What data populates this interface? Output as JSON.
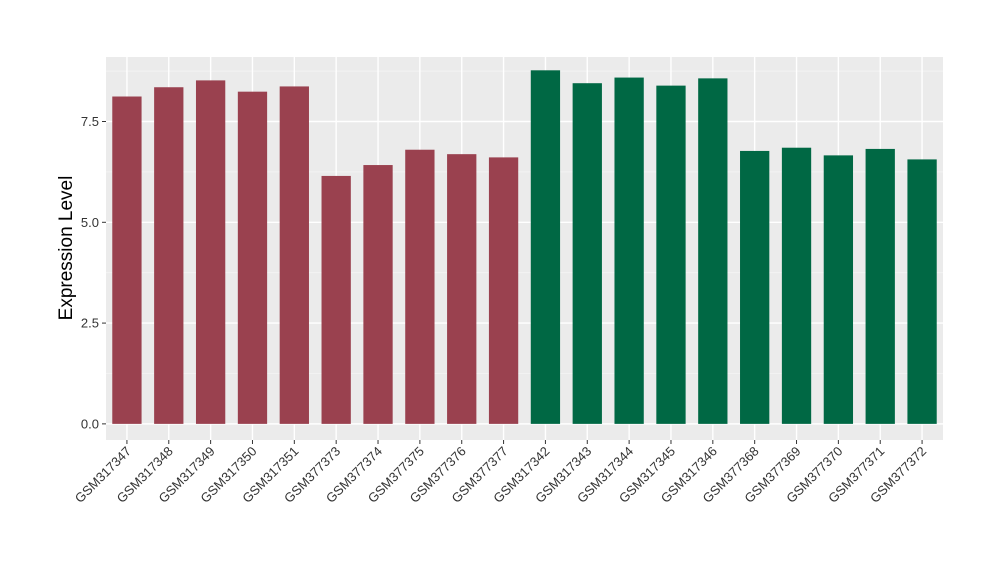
{
  "chart_data": {
    "type": "bar",
    "title": "",
    "xlabel": "",
    "ylabel": "Expression Level",
    "ylim": [
      -0.4,
      9.1
    ],
    "yticks": [
      0.0,
      2.5,
      5.0,
      7.5
    ],
    "ytick_labels": [
      "0.0",
      "2.5",
      "5.0",
      "7.5"
    ],
    "grid": true,
    "legend": "none",
    "categories": [
      "GSM317347",
      "GSM317348",
      "GSM317349",
      "GSM317350",
      "GSM317351",
      "GSM377373",
      "GSM377374",
      "GSM377375",
      "GSM377376",
      "GSM377377",
      "GSM317342",
      "GSM317343",
      "GSM317344",
      "GSM317345",
      "GSM317346",
      "GSM377368",
      "GSM377369",
      "GSM377370",
      "GSM377371",
      "GSM377372"
    ],
    "values": [
      8.12,
      8.35,
      8.52,
      8.24,
      8.37,
      6.15,
      6.42,
      6.8,
      6.69,
      6.61,
      8.77,
      8.45,
      8.59,
      8.39,
      8.57,
      6.77,
      6.85,
      6.66,
      6.82,
      6.56
    ],
    "colors": [
      "#9a414f",
      "#9a414f",
      "#9a414f",
      "#9a414f",
      "#9a414f",
      "#9a414f",
      "#9a414f",
      "#9a414f",
      "#9a414f",
      "#9a414f",
      "#006844",
      "#006844",
      "#006844",
      "#006844",
      "#006844",
      "#006844",
      "#006844",
      "#006844",
      "#006844",
      "#006844"
    ]
  }
}
